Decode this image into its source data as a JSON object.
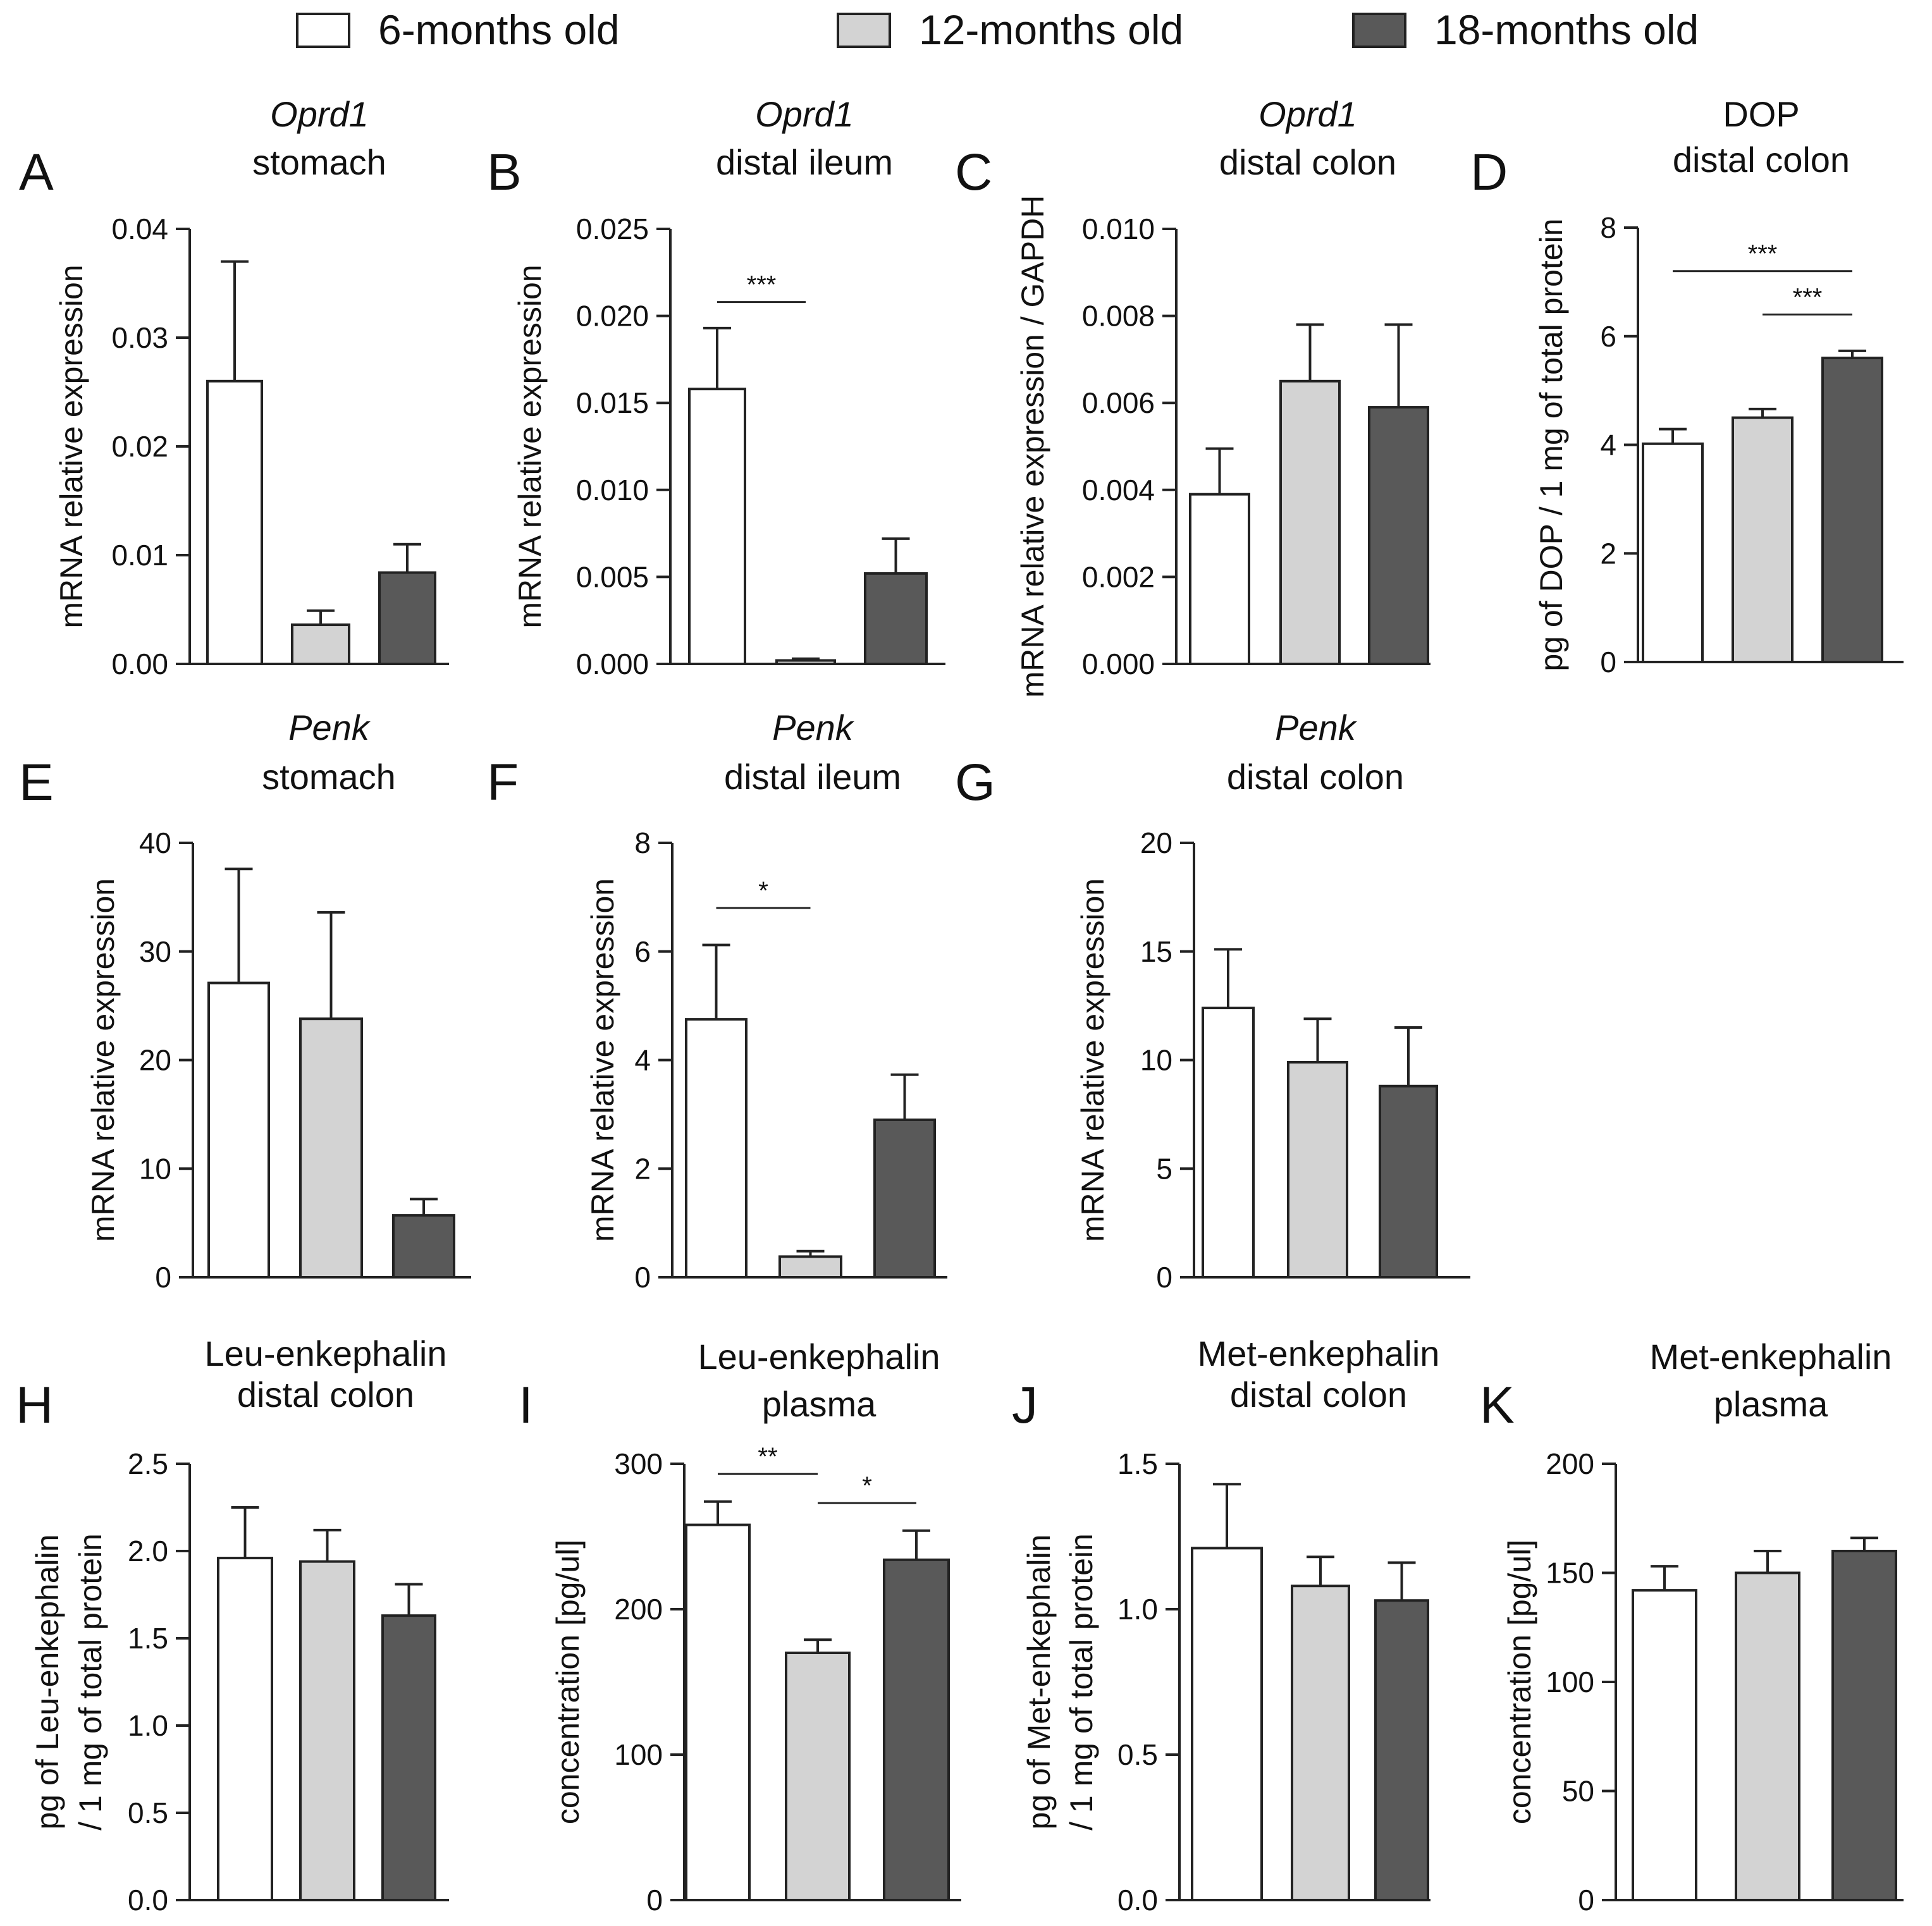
{
  "legend": [
    {
      "label": "6-months old",
      "color": "#ffffff"
    },
    {
      "label": "12-months old",
      "color": "#d3d3d3"
    },
    {
      "label": "18-months old",
      "color": "#595959"
    }
  ],
  "chart_data": [
    {
      "id": "A",
      "type": "bar",
      "title_italic": "Oprd1",
      "title": "stomach",
      "ylabel": [
        "mRNA relative expression"
      ],
      "ylim": [
        0,
        0.04
      ],
      "yticks": [
        "0.00",
        "0.01",
        "0.02",
        "0.03",
        "0.04"
      ],
      "categories": [
        "6-months old",
        "12-months old",
        "18-months old"
      ],
      "values": [
        0.026,
        0.0036,
        0.0084
      ],
      "errors": [
        0.011,
        0.0013,
        0.0026
      ],
      "significance": []
    },
    {
      "id": "B",
      "type": "bar",
      "title_italic": "Oprd1",
      "title": "distal ileum",
      "ylabel": [
        "mRNA relative expression"
      ],
      "ylim": [
        0,
        0.025
      ],
      "yticks": [
        "0.000",
        "0.005",
        "0.010",
        "0.015",
        "0.020",
        "0.025"
      ],
      "categories": [
        "6-months old",
        "12-months old",
        "18-months old"
      ],
      "values": [
        0.0158,
        0.0002,
        0.0052
      ],
      "errors": [
        0.0035,
        0.0001,
        0.002
      ],
      "significance": [
        {
          "from": 0,
          "to": 1,
          "label": "***",
          "level": 0.0208
        }
      ]
    },
    {
      "id": "C",
      "type": "bar",
      "title_italic": "Oprd1",
      "title": "distal colon",
      "ylabel": [
        "mRNA relative expression / GAPDH"
      ],
      "ylim": [
        0,
        0.01
      ],
      "yticks": [
        "0.000",
        "0.002",
        "0.004",
        "0.006",
        "0.008",
        "0.010"
      ],
      "categories": [
        "6-months old",
        "12-months old",
        "18-months old"
      ],
      "values": [
        0.0039,
        0.0065,
        0.0059
      ],
      "errors": [
        0.00105,
        0.0013,
        0.0019
      ],
      "significance": []
    },
    {
      "id": "D",
      "type": "bar",
      "title_italic": "",
      "title_line1": "DOP",
      "title": "distal colon",
      "ylabel": [
        "pg of DOP / 1 mg of total protein"
      ],
      "ylim": [
        0,
        8
      ],
      "yticks": [
        "0",
        "2",
        "4",
        "6",
        "8"
      ],
      "categories": [
        "6-months old",
        "12-months old",
        "18-months old"
      ],
      "values": [
        4.02,
        4.5,
        5.6
      ],
      "errors": [
        0.27,
        0.16,
        0.13
      ],
      "significance": [
        {
          "from": 0,
          "to": 2,
          "label": "***",
          "level": 7.2
        },
        {
          "from": 1,
          "to": 2,
          "label": "***",
          "level": 6.4
        }
      ]
    },
    {
      "id": "E",
      "type": "bar",
      "title_italic": "Penk",
      "title": "stomach",
      "ylabel": [
        "mRNA relative expression"
      ],
      "ylim": [
        0,
        40
      ],
      "yticks": [
        "0",
        "10",
        "20",
        "30",
        "40"
      ],
      "categories": [
        "6-months old",
        "12-months old",
        "18-months old"
      ],
      "values": [
        27.1,
        23.8,
        5.7
      ],
      "errors": [
        10.5,
        9.8,
        1.5
      ],
      "significance": []
    },
    {
      "id": "F",
      "type": "bar",
      "title_italic": "Penk",
      "title": "distal ileum",
      "ylabel": [
        "mRNA relative expression"
      ],
      "ylim": [
        0,
        8
      ],
      "yticks": [
        "0",
        "2",
        "4",
        "6",
        "8"
      ],
      "categories": [
        "6-months old",
        "12-months old",
        "18-months old"
      ],
      "values": [
        4.75,
        0.38,
        2.9
      ],
      "errors": [
        1.37,
        0.1,
        0.83
      ],
      "significance": [
        {
          "from": 0,
          "to": 1,
          "label": "*",
          "level": 6.8
        }
      ]
    },
    {
      "id": "G",
      "type": "bar",
      "title_italic": "Penk",
      "title": "distal colon",
      "ylabel": [
        "mRNA relative expression"
      ],
      "ylim": [
        0,
        20
      ],
      "yticks": [
        "0",
        "5",
        "10",
        "15",
        "20"
      ],
      "categories": [
        "6-months old",
        "12-months old",
        "18-months old"
      ],
      "values": [
        12.4,
        9.9,
        8.8
      ],
      "errors": [
        2.7,
        2.0,
        2.7
      ],
      "significance": []
    },
    {
      "id": "H",
      "type": "bar",
      "title_italic": "",
      "title_line1": "Leu-enkephalin",
      "title": "distal colon",
      "ylabel": [
        "pg of Leu-enkephalin",
        "/ 1 mg of total protein"
      ],
      "ylim": [
        0,
        2.5
      ],
      "yticks": [
        "0.0",
        "0.5",
        "1.0",
        "1.5",
        "2.0",
        "2.5"
      ],
      "categories": [
        "6-months old",
        "12-months old",
        "18-months old"
      ],
      "values": [
        1.96,
        1.94,
        1.63
      ],
      "errors": [
        0.29,
        0.18,
        0.18
      ],
      "significance": []
    },
    {
      "id": "I",
      "type": "bar",
      "title_italic": "",
      "title_line1": "Leu-enkephalin",
      "title": "plasma",
      "ylabel": [
        "concentration [pg/ul]"
      ],
      "ylim": [
        0,
        300
      ],
      "yticks": [
        "0",
        "100",
        "200",
        "300"
      ],
      "categories": [
        "6-months old",
        "12-months old",
        "18-months old"
      ],
      "values": [
        258,
        170,
        234
      ],
      "errors": [
        16,
        9,
        20
      ],
      "significance": [
        {
          "from": 0,
          "to": 1,
          "label": "**",
          "level": 293
        },
        {
          "from": 1,
          "to": 2,
          "label": "*",
          "level": 273
        }
      ]
    },
    {
      "id": "J",
      "type": "bar",
      "title_italic": "",
      "title_line1": "Met-enkephalin",
      "title": "distal colon",
      "ylabel": [
        "pg of Met-enkephalin",
        "/ 1 mg of total protein"
      ],
      "ylim": [
        0,
        1.5
      ],
      "yticks": [
        "0.0",
        "0.5",
        "1.0",
        "1.5"
      ],
      "categories": [
        "6-months old",
        "12-months old",
        "18-months old"
      ],
      "values": [
        1.21,
        1.08,
        1.03
      ],
      "errors": [
        0.22,
        0.1,
        0.13
      ],
      "significance": []
    },
    {
      "id": "K",
      "type": "bar",
      "title_italic": "",
      "title_line1": "Met-enkephalin",
      "title": "plasma",
      "ylabel": [
        "concentration [pg/ul]"
      ],
      "ylim": [
        0,
        200
      ],
      "yticks": [
        "0",
        "50",
        "100",
        "150",
        "200"
      ],
      "categories": [
        "6-months old",
        "12-months old",
        "18-months old"
      ],
      "values": [
        142,
        150,
        160
      ],
      "errors": [
        11,
        10,
        6
      ],
      "significance": []
    }
  ]
}
